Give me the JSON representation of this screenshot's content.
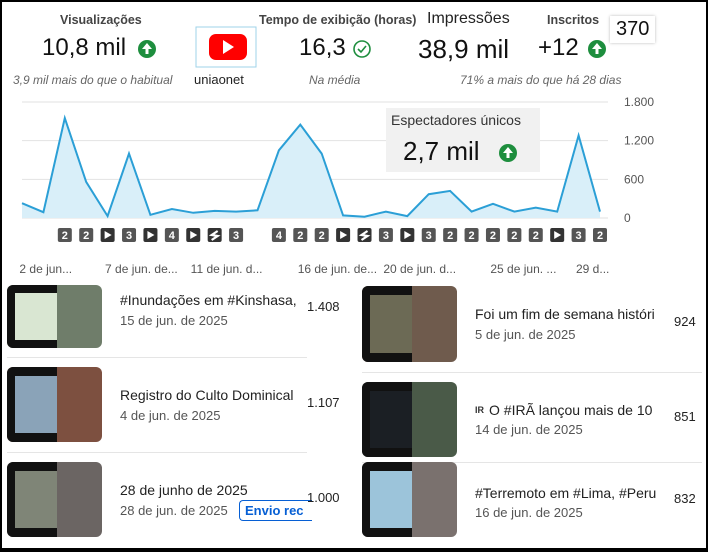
{
  "metrics": [
    {
      "label": "Visualizações",
      "value": "10,8 mil",
      "note": "3,9 mil mais do que o habitual"
    },
    {
      "label": "Tempo de exibição (horas)",
      "value": "16,3",
      "note": "Na média"
    },
    {
      "label": "Impressões",
      "value": "38,9 mil"
    },
    {
      "label": "Inscritos",
      "value": "+12",
      "note": "71% a mais do que há 28 dias"
    }
  ],
  "channel": "uniaonet",
  "subscriber_count": "370",
  "unique_viewers": {
    "label": "Espectadores únicos",
    "value": "2,7 mil"
  },
  "chart_data": {
    "type": "line",
    "categories": [
      null,
      "2 de jun...",
      null,
      null,
      null,
      "7 de jun. de...",
      null,
      null,
      null,
      "11 de jun. d...",
      null,
      null,
      null,
      null,
      "16 de jun. de...",
      null,
      null,
      null,
      "20 de jun. d...",
      null,
      null,
      null,
      null,
      "25 de jun. ...",
      null,
      null,
      null,
      "29 d..."
    ],
    "values": [
      230,
      90,
      1550,
      560,
      30,
      1000,
      50,
      140,
      80,
      110,
      100,
      120,
      1050,
      1450,
      1000,
      40,
      20,
      100,
      30,
      370,
      420,
      100,
      220,
      100,
      160,
      100,
      1280,
      100
    ],
    "color": "#2b9fd6",
    "ylim": [
      0,
      1800
    ],
    "yticks": [
      0,
      600,
      {
        "value": 1200,
        "label": "1.200"
      },
      {
        "value": 1800,
        "label": "1.800"
      }
    ],
    "grid": true,
    "markers": [
      "2",
      "2",
      null,
      "3",
      null,
      "4",
      null,
      null,
      "3",
      "4",
      "2",
      "2",
      null,
      null,
      "3",
      null,
      "3",
      "2",
      "2",
      "2",
      "2",
      "2",
      null,
      "3",
      "2"
    ]
  },
  "videos": {
    "left": [
      {
        "title": "#Inundações em #Kinshasa,",
        "date": "15 de jun. de 2025",
        "views": "1.408"
      },
      {
        "title": "Registro do Culto Dominical",
        "date": "4 de jun. de 2025",
        "views": "1.107"
      },
      {
        "title": "28 de junho de 2025",
        "date": "28 de jun. de 2025",
        "views": "1.000",
        "badge": "Envio rec"
      }
    ],
    "right": [
      {
        "title": "Foi um fim de semana históri",
        "date": "5 de jun. de 2025",
        "views": "924"
      },
      {
        "prefix": "IR",
        "title": "O #IRÃ lançou mais de 10",
        "date": "14 de jun. de 2025",
        "views": "851"
      },
      {
        "title": "#Terremoto em #Lima, #Peru",
        "date": "16 de jun. de 2025",
        "views": "832"
      }
    ]
  }
}
